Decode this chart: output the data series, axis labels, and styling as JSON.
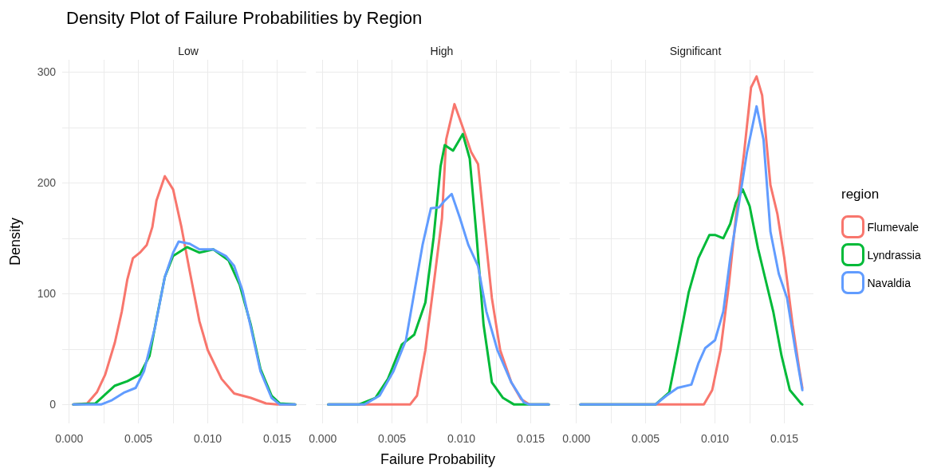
{
  "chart_data": [
    {
      "type": "line",
      "title": "Density Plot of Failure Probabilities by Region",
      "subtitle": "Low",
      "ylabel": "Density",
      "xlim": [
        -0.0005,
        0.0171
      ],
      "ylim": [
        -17,
        311
      ],
      "xticks": [
        {
          "value": 0,
          "label": "0.000"
        },
        {
          "value": 0.0025,
          "label": null
        },
        {
          "value": 0.005,
          "label": "0.005"
        },
        {
          "value": 0.0075,
          "label": null
        },
        {
          "value": 0.01,
          "label": "0.010"
        },
        {
          "value": 0.0125,
          "label": null
        },
        {
          "value": 0.015,
          "label": "0.015"
        }
      ],
      "yticks": [
        0,
        {
          "value": 50,
          "label": null
        },
        100,
        {
          "value": 150,
          "label": null
        },
        200,
        {
          "value": 250,
          "label": null
        },
        300
      ],
      "grid": true,
      "legend": false,
      "marker": "none",
      "line_style": "solid",
      "series": [
        {
          "color": "#f8766d",
          "x": [
            0.0003,
            0.0013,
            0.002,
            0.0026,
            0.0033,
            0.0038,
            0.0042,
            0.0046,
            0.0051,
            0.0056,
            0.006,
            0.0063,
            0.0069,
            0.0075,
            0.0081,
            0.0087,
            0.0094,
            0.01,
            0.011,
            0.0119,
            0.0131,
            0.0142,
            0.015,
            0.0163
          ],
          "values": [
            0,
            1,
            11,
            27,
            56,
            84,
            113,
            132,
            137,
            144,
            160,
            184,
            206,
            194,
            160,
            120,
            75,
            49,
            23,
            10,
            6,
            1,
            0,
            0
          ]
        },
        {
          "color": "#00ba38",
          "x": [
            0.0003,
            0.0019,
            0.0033,
            0.0042,
            0.0051,
            0.0058,
            0.0063,
            0.0069,
            0.0075,
            0.0085,
            0.0094,
            0.0104,
            0.0115,
            0.0123,
            0.0131,
            0.0138,
            0.0146,
            0.0152,
            0.0163
          ],
          "values": [
            0,
            1,
            17,
            21,
            27,
            44,
            77,
            115,
            134,
            142,
            137,
            140,
            130,
            108,
            72,
            32,
            8,
            1,
            0
          ]
        },
        {
          "color": "#619cff",
          "x": [
            0.0003,
            0.0023,
            0.0031,
            0.004,
            0.0048,
            0.0054,
            0.0062,
            0.0069,
            0.0075,
            0.0079,
            0.0087,
            0.0094,
            0.0104,
            0.0113,
            0.0119,
            0.0125,
            0.0131,
            0.0138,
            0.0146,
            0.0152,
            0.0163
          ],
          "values": [
            0,
            0,
            4,
            11,
            15,
            30,
            70,
            115,
            137,
            147,
            145,
            140,
            140,
            134,
            125,
            103,
            70,
            30,
            6,
            0,
            0
          ]
        }
      ]
    },
    {
      "type": "line",
      "subtitle": "High",
      "xlabel": "Failure Probability",
      "xlim": [
        -0.0005,
        0.0171
      ],
      "ylim": [
        -17,
        311
      ],
      "tick_labels": "x",
      "xticks": [
        {
          "value": 0,
          "label": "0.000"
        },
        {
          "value": 0.0025,
          "label": null
        },
        {
          "value": 0.005,
          "label": "0.005"
        },
        {
          "value": 0.0075,
          "label": null
        },
        {
          "value": 0.01,
          "label": "0.010"
        },
        {
          "value": 0.0125,
          "label": null
        },
        {
          "value": 0.015,
          "label": "0.015"
        }
      ],
      "yticks": [
        0,
        {
          "value": 50,
          "label": null
        },
        100,
        {
          "value": 150,
          "label": null
        },
        200,
        {
          "value": 250,
          "label": null
        },
        300
      ],
      "grid": true,
      "legend": false,
      "marker": "none",
      "line_style": "solid",
      "series": [
        {
          "color": "#f8766d",
          "x": [
            0.0004,
            0.0063,
            0.0068,
            0.0074,
            0.008,
            0.0086,
            0.0089,
            0.0095,
            0.0101,
            0.0107,
            0.0112,
            0.0116,
            0.0122,
            0.0128,
            0.0136,
            0.0143,
            0.0149,
            0.0163
          ],
          "values": [
            0,
            0,
            8,
            49,
            108,
            168,
            239,
            271,
            250,
            228,
            217,
            168,
            96,
            49,
            20,
            5,
            0,
            0
          ]
        },
        {
          "color": "#00ba38",
          "x": [
            0.0004,
            0.0026,
            0.0038,
            0.0047,
            0.0057,
            0.0066,
            0.0074,
            0.008,
            0.0085,
            0.0088,
            0.0094,
            0.0101,
            0.0106,
            0.0111,
            0.0116,
            0.0122,
            0.013,
            0.0138,
            0.0163
          ],
          "values": [
            0,
            0,
            6,
            23,
            54,
            63,
            92,
            151,
            215,
            234,
            229,
            244,
            222,
            151,
            72,
            20,
            6,
            0,
            0
          ]
        },
        {
          "color": "#619cff",
          "x": [
            0.0004,
            0.003,
            0.0041,
            0.0051,
            0.006,
            0.0066,
            0.0072,
            0.0078,
            0.0084,
            0.0088,
            0.0093,
            0.0099,
            0.0105,
            0.0112,
            0.0118,
            0.0126,
            0.0136,
            0.0145,
            0.0149,
            0.0163
          ],
          "values": [
            0,
            0,
            8,
            30,
            58,
            101,
            144,
            177,
            178,
            184,
            190,
            168,
            144,
            125,
            84,
            49,
            20,
            2,
            0,
            0
          ]
        }
      ]
    },
    {
      "type": "line",
      "subtitle": "Significant",
      "legend_title": "region",
      "xlim": [
        -0.0005,
        0.0171
      ],
      "ylim": [
        -17,
        311
      ],
      "tick_labels": "x",
      "xticks": [
        {
          "value": 0,
          "label": "0.000"
        },
        {
          "value": 0.0025,
          "label": null
        },
        {
          "value": 0.005,
          "label": "0.005"
        },
        {
          "value": 0.0075,
          "label": null
        },
        {
          "value": 0.01,
          "label": "0.010"
        },
        {
          "value": 0.0125,
          "label": null
        },
        {
          "value": 0.015,
          "label": "0.015"
        }
      ],
      "yticks": [
        0,
        {
          "value": 50,
          "label": null
        },
        100,
        {
          "value": 150,
          "label": null
        },
        200,
        {
          "value": 250,
          "label": null
        },
        300
      ],
      "grid": true,
      "legend": "right",
      "marker": "none",
      "line_style": "solid",
      "series": [
        {
          "name": "Flumevale",
          "color": "#f8766d",
          "x": [
            0.0003,
            0.0092,
            0.0098,
            0.0104,
            0.011,
            0.0115,
            0.0121,
            0.0126,
            0.013,
            0.0134,
            0.014,
            0.0145,
            0.015,
            0.0156,
            0.0161,
            0.0163
          ],
          "values": [
            0,
            0,
            13,
            49,
            108,
            168,
            227,
            286,
            296,
            279,
            198,
            172,
            132,
            72,
            30,
            15
          ]
        },
        {
          "name": "Lyndrassia",
          "color": "#00ba38",
          "x": [
            0.0003,
            0.0057,
            0.0067,
            0.0073,
            0.0081,
            0.0088,
            0.0096,
            0.01,
            0.0106,
            0.0111,
            0.0115,
            0.012,
            0.0125,
            0.0131,
            0.0136,
            0.0142,
            0.0148,
            0.0154,
            0.0162,
            0.0163
          ],
          "values": [
            0,
            0,
            11,
            49,
            101,
            132,
            153,
            153,
            150,
            163,
            182,
            194,
            179,
            141,
            115,
            84,
            44,
            13,
            1,
            0
          ]
        },
        {
          "name": "Navaldia",
          "color": "#619cff",
          "x": [
            0.0003,
            0.0057,
            0.0065,
            0.0073,
            0.0083,
            0.0088,
            0.0093,
            0.01,
            0.0106,
            0.0111,
            0.0117,
            0.0123,
            0.013,
            0.0135,
            0.014,
            0.0146,
            0.0152,
            0.0158,
            0.0163
          ],
          "values": [
            0,
            0,
            8,
            15,
            18,
            37,
            51,
            58,
            84,
            132,
            179,
            227,
            269,
            239,
            156,
            118,
            96,
            49,
            13
          ]
        }
      ]
    }
  ]
}
